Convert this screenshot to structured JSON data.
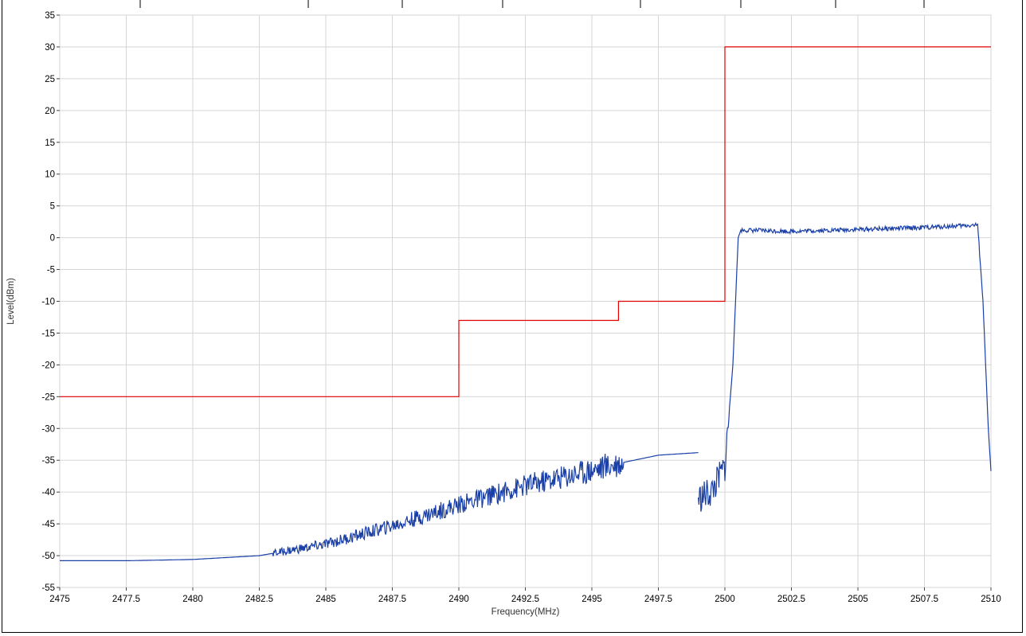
{
  "chart_data": {
    "type": "line",
    "xlabel": "Frequency(MHz)",
    "ylabel": "Level(dBm)",
    "xlim": [
      2475,
      2510
    ],
    "ylim": [
      -55,
      35
    ],
    "x_ticks": [
      "2475",
      "2477.5",
      "2480",
      "2482.5",
      "2485",
      "2487.5",
      "2490",
      "2492.5",
      "2495",
      "2497.5",
      "2500",
      "2502.5",
      "2505",
      "2507.5",
      "2510"
    ],
    "y_ticks": [
      "35",
      "30",
      "25",
      "20",
      "15",
      "10",
      "5",
      "0",
      "-5",
      "-10",
      "-15",
      "-20",
      "-25",
      "-30",
      "-35",
      "-40",
      "-45",
      "-50",
      "-55"
    ],
    "grid": true,
    "series": [
      {
        "color": "#e00000",
        "step": true,
        "points": [
          [
            2475,
            -25
          ],
          [
            2490,
            -25
          ],
          [
            2490,
            -13
          ],
          [
            2496,
            -13
          ],
          [
            2496,
            -10
          ],
          [
            2500,
            -10
          ],
          [
            2500,
            30
          ],
          [
            2510,
            30
          ]
        ]
      },
      {
        "color": "#1a3fa6",
        "points": [
          [
            2475,
            -50.8
          ],
          [
            2477.5,
            -50.8
          ],
          [
            2480,
            -50.6
          ],
          [
            2482.5,
            -50
          ],
          [
            2485,
            -48.2
          ],
          [
            2487.5,
            -45.3
          ],
          [
            2490,
            -42
          ],
          [
            2492.5,
            -39
          ],
          [
            2495,
            -36.5
          ],
          [
            2496,
            -35.5
          ],
          [
            2497.5,
            -34.2
          ],
          [
            2499,
            -33.8
          ]
        ]
      },
      {
        "color": "#1a3fa6",
        "points": [
          [
            2499,
            -41
          ],
          [
            2499.5,
            -40
          ],
          [
            2500,
            -36
          ],
          [
            2500.3,
            -20
          ],
          [
            2500.5,
            0
          ],
          [
            2500.6,
            1.2
          ],
          [
            2502.5,
            1
          ],
          [
            2505,
            1.3
          ],
          [
            2507.5,
            1.6
          ],
          [
            2509.5,
            2
          ],
          [
            2509.7,
            -10
          ],
          [
            2509.9,
            -30
          ],
          [
            2510,
            -36.7
          ]
        ]
      }
    ]
  }
}
